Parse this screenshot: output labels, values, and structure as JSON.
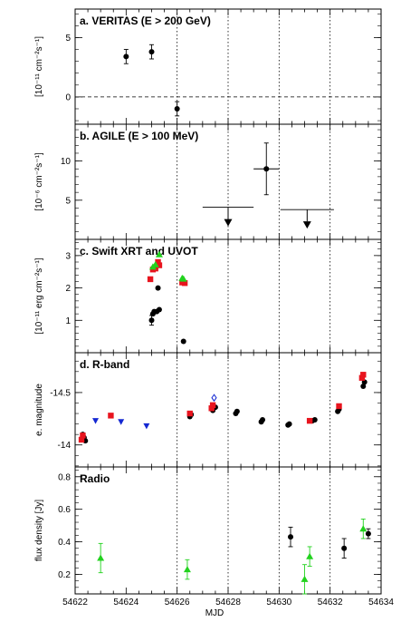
{
  "chart_data": {
    "type": "scatter",
    "xlabel": "MJD",
    "xlim": [
      54622,
      54634
    ],
    "xticks": [
      "54622",
      "54624",
      "54626",
      "54628",
      "54630",
      "54632",
      "54634"
    ],
    "vlines": [
      54626,
      54628,
      54630,
      54632
    ],
    "colors": {
      "black": "#000000",
      "red": "#e8141e",
      "green": "#22d21e",
      "blue": "#1428d2",
      "open_blue": "#1428d2"
    },
    "panels": [
      {
        "title": "a. VERITAS (E > 200 GeV)",
        "ylabel": "[10⁻¹¹ cm⁻²s⁻¹]",
        "ylim": [
          -2.3,
          7.4
        ],
        "yticks": [
          0,
          5
        ],
        "ytick_labels": [
          "0",
          "5"
        ],
        "zero_line": true,
        "series": [
          {
            "marker": "circle",
            "color": "black",
            "points": [
              {
                "x": 54624.0,
                "y": 3.4,
                "yerr": 0.6
              },
              {
                "x": 54625.0,
                "y": 3.8,
                "yerr": 0.6
              },
              {
                "x": 54626.0,
                "y": -1.0,
                "yerr": 0.6
              }
            ]
          }
        ]
      },
      {
        "title": "b. AGILE (E > 100 MeV)",
        "ylabel": "[10⁻⁶ cm⁻²s⁻¹]",
        "ylim": [
          0,
          14.7
        ],
        "yticks": [
          5,
          10
        ],
        "ytick_labels": [
          "5",
          "10"
        ],
        "series": [
          {
            "marker": "circle",
            "color": "black",
            "points": [
              {
                "x": 54629.5,
                "y": 9.0,
                "yerr": 3.3,
                "xerr": 0.5
              }
            ]
          },
          {
            "marker": "upper-limit",
            "color": "black",
            "points": [
              {
                "x": 54628.0,
                "y": 4.1,
                "xerr": 1.0
              },
              {
                "x": 54631.1,
                "y": 3.8,
                "xerr": 1.05
              }
            ]
          }
        ]
      },
      {
        "title": "c. Swift XRT and UVOT",
        "ylabel": "[10⁻¹¹ erg cm⁻²s⁻¹]",
        "ylim": [
          0,
          3.5
        ],
        "yticks": [
          1,
          2,
          3
        ],
        "ytick_labels": [
          "1",
          "2",
          "3"
        ],
        "series": [
          {
            "marker": "circle",
            "color": "black",
            "points": [
              {
                "x": 54625.0,
                "y": 1.0,
                "yerr": 0.15
              },
              {
                "x": 54625.05,
                "y": 1.2
              },
              {
                "x": 54625.1,
                "y": 1.27
              },
              {
                "x": 54625.2,
                "y": 1.27
              },
              {
                "x": 54625.3,
                "y": 1.33
              },
              {
                "x": 54625.25,
                "y": 2.0
              },
              {
                "x": 54626.25,
                "y": 0.35
              }
            ]
          },
          {
            "marker": "square",
            "color": "red",
            "points": [
              {
                "x": 54624.95,
                "y": 2.27
              },
              {
                "x": 54625.05,
                "y": 2.57
              },
              {
                "x": 54625.15,
                "y": 2.6
              },
              {
                "x": 54625.25,
                "y": 2.8
              },
              {
                "x": 54625.3,
                "y": 2.7
              },
              {
                "x": 54626.2,
                "y": 2.17
              },
              {
                "x": 54626.3,
                "y": 2.15
              }
            ]
          },
          {
            "marker": "triangle",
            "color": "green",
            "points": [
              {
                "x": 54625.05,
                "y": 2.65
              },
              {
                "x": 54625.15,
                "y": 2.72
              },
              {
                "x": 54625.3,
                "y": 3.03
              },
              {
                "x": 54626.2,
                "y": 2.3
              },
              {
                "x": 54626.25,
                "y": 2.28
              }
            ]
          }
        ]
      },
      {
        "title": "d. R-band",
        "ylabel": "e. magnitude",
        "ylim": [
          -13.79,
          -14.88
        ],
        "reversed": true,
        "yticks": [
          -14,
          -14.5
        ],
        "ytick_labels": [
          "-14",
          "-14.5"
        ],
        "series": [
          {
            "marker": "circle",
            "color": "black",
            "points": [
              {
                "x": 54622.3,
                "y": -14.1
              },
              {
                "x": 54622.35,
                "y": -14.07
              },
              {
                "x": 54622.4,
                "y": -14.04
              },
              {
                "x": 54626.5,
                "y": -14.27
              },
              {
                "x": 54626.55,
                "y": -14.29
              },
              {
                "x": 54627.4,
                "y": -14.33
              },
              {
                "x": 54627.5,
                "y": -14.36
              },
              {
                "x": 54628.3,
                "y": -14.3
              },
              {
                "x": 54628.35,
                "y": -14.32
              },
              {
                "x": 54629.3,
                "y": -14.22
              },
              {
                "x": 54629.35,
                "y": -14.24
              },
              {
                "x": 54630.35,
                "y": -14.19
              },
              {
                "x": 54630.4,
                "y": -14.2
              },
              {
                "x": 54631.3,
                "y": -14.23
              },
              {
                "x": 54631.4,
                "y": -14.24
              },
              {
                "x": 54632.3,
                "y": -14.32
              },
              {
                "x": 54632.35,
                "y": -14.34
              },
              {
                "x": 54633.3,
                "y": -14.56
              },
              {
                "x": 54633.35,
                "y": -14.6
              }
            ]
          },
          {
            "marker": "square",
            "color": "red",
            "points": [
              {
                "x": 54622.25,
                "y": -14.05
              },
              {
                "x": 54622.3,
                "y": -14.09
              },
              {
                "x": 54623.4,
                "y": -14.28
              },
              {
                "x": 54626.5,
                "y": -14.3
              },
              {
                "x": 54627.35,
                "y": -14.35
              },
              {
                "x": 54627.4,
                "y": -14.38
              },
              {
                "x": 54631.2,
                "y": -14.23
              },
              {
                "x": 54632.35,
                "y": -14.37
              },
              {
                "x": 54633.25,
                "y": -14.64
              },
              {
                "x": 54633.3,
                "y": -14.67
              }
            ]
          },
          {
            "marker": "triangle-down",
            "color": "blue",
            "points": [
              {
                "x": 54622.8,
                "y": -14.23
              },
              {
                "x": 54623.8,
                "y": -14.22
              },
              {
                "x": 54624.8,
                "y": -14.18
              }
            ]
          },
          {
            "marker": "open-diamond",
            "color": "open_blue",
            "points": [
              {
                "x": 54627.45,
                "y": -14.45
              }
            ]
          }
        ]
      },
      {
        "title": "Radio",
        "ylabel": "flux density [Jy]",
        "ylim": [
          0.08,
          0.86
        ],
        "yticks": [
          0.2,
          0.4,
          0.6,
          0.8
        ],
        "ytick_labels": [
          "0.2",
          "0.4",
          "0.6",
          "0.8"
        ],
        "series": [
          {
            "marker": "triangle",
            "color": "green",
            "errcolor": "green",
            "points": [
              {
                "x": 54623.0,
                "y": 0.3,
                "yerr": 0.09
              },
              {
                "x": 54626.4,
                "y": 0.23,
                "yerr": 0.06
              },
              {
                "x": 54631.0,
                "y": 0.17,
                "yerr": 0.09
              },
              {
                "x": 54631.2,
                "y": 0.31,
                "yerr": 0.06
              },
              {
                "x": 54633.3,
                "y": 0.48,
                "yerr": 0.06
              }
            ]
          },
          {
            "marker": "circle",
            "color": "black",
            "points": [
              {
                "x": 54630.45,
                "y": 0.43,
                "yerr": 0.06
              },
              {
                "x": 54632.55,
                "y": 0.36,
                "yerr": 0.06
              },
              {
                "x": 54633.5,
                "y": 0.45,
                "yerr": 0.03
              }
            ]
          }
        ]
      }
    ]
  }
}
